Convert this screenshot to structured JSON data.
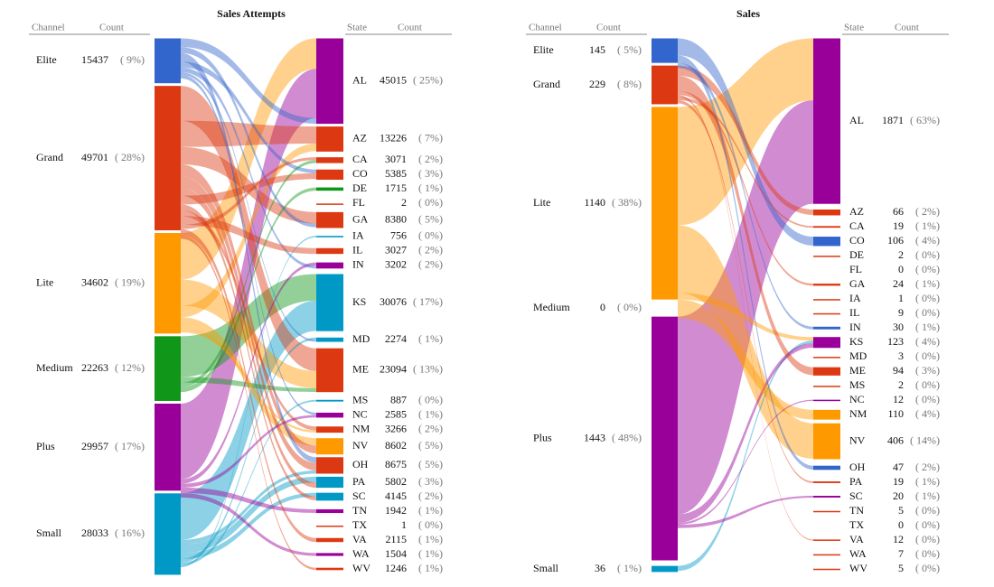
{
  "panels": [
    {
      "title": "Sales Attempts",
      "headers": {
        "channel": "Channel",
        "channel_count": "Count",
        "state": "State",
        "state_count": "Count"
      },
      "channels": [
        {
          "name": "Elite",
          "count": 15437,
          "share": "( 9%)",
          "color": "#3366cc"
        },
        {
          "name": "Grand",
          "count": 49701,
          "share": "( 28%)",
          "color": "#dc3912"
        },
        {
          "name": "Lite",
          "count": 34602,
          "share": "( 19%)",
          "color": "#ff9900"
        },
        {
          "name": "Medium",
          "count": 22263,
          "share": "( 12%)",
          "color": "#109618"
        },
        {
          "name": "Plus",
          "count": 29957,
          "share": "( 17%)",
          "color": "#990099"
        },
        {
          "name": "Small",
          "count": 28033,
          "share": "( 16%)",
          "color": "#0099c6"
        }
      ],
      "states": [
        {
          "name": "AL",
          "count": 45015,
          "share": "( 25%)"
        },
        {
          "name": "AZ",
          "count": 13226,
          "share": "( 7%)"
        },
        {
          "name": "CA",
          "count": 3071,
          "share": "( 2%)"
        },
        {
          "name": "CO",
          "count": 5385,
          "share": "( 3%)"
        },
        {
          "name": "DE",
          "count": 1715,
          "share": "( 1%)"
        },
        {
          "name": "FL",
          "count": 2,
          "share": "( 0%)"
        },
        {
          "name": "GA",
          "count": 8380,
          "share": "( 5%)"
        },
        {
          "name": "IA",
          "count": 756,
          "share": "( 0%)"
        },
        {
          "name": "IL",
          "count": 3027,
          "share": "( 2%)"
        },
        {
          "name": "IN",
          "count": 3202,
          "share": "( 2%)"
        },
        {
          "name": "KS",
          "count": 30076,
          "share": "( 17%)"
        },
        {
          "name": "MD",
          "count": 2274,
          "share": "( 1%)"
        },
        {
          "name": "ME",
          "count": 23094,
          "share": "( 13%)"
        },
        {
          "name": "MS",
          "count": 887,
          "share": "( 0%)"
        },
        {
          "name": "NC",
          "count": 2585,
          "share": "( 1%)"
        },
        {
          "name": "NM",
          "count": 3266,
          "share": "( 2%)"
        },
        {
          "name": "NV",
          "count": 8602,
          "share": "( 5%)"
        },
        {
          "name": "OH",
          "count": 8675,
          "share": "( 5%)"
        },
        {
          "name": "PA",
          "count": 5802,
          "share": "( 3%)"
        },
        {
          "name": "SC",
          "count": 4145,
          "share": "( 2%)"
        },
        {
          "name": "TN",
          "count": 1942,
          "share": "( 1%)"
        },
        {
          "name": "TX",
          "count": 1,
          "share": "( 0%)"
        },
        {
          "name": "VA",
          "count": 2115,
          "share": "( 1%)"
        },
        {
          "name": "WA",
          "count": 1504,
          "share": "( 1%)"
        },
        {
          "name": "WV",
          "count": 1246,
          "share": "( 1%)"
        }
      ],
      "flows": [
        {
          "from": "Lite",
          "to": "AL",
          "value": 16000
        },
        {
          "from": "Plus",
          "to": "AL",
          "value": 26000
        },
        {
          "from": "Elite",
          "to": "AL",
          "value": 3000
        },
        {
          "from": "Medium",
          "to": "KS",
          "value": 14000
        },
        {
          "from": "Small",
          "to": "KS",
          "value": 16000
        },
        {
          "from": "Grand",
          "to": "ME",
          "value": 12000
        },
        {
          "from": "Lite",
          "to": "ME",
          "value": 9000
        },
        {
          "from": "Medium",
          "to": "ME",
          "value": 2000
        },
        {
          "from": "Grand",
          "to": "AZ",
          "value": 9000
        },
        {
          "from": "Lite",
          "to": "AZ",
          "value": 4000
        },
        {
          "from": "Grand",
          "to": "GA",
          "value": 6000
        },
        {
          "from": "Elite",
          "to": "GA",
          "value": 2000
        },
        {
          "from": "Lite",
          "to": "NV",
          "value": 4000
        },
        {
          "from": "Grand",
          "to": "NV",
          "value": 4000
        },
        {
          "from": "Elite",
          "to": "OH",
          "value": 3000
        },
        {
          "from": "Grand",
          "to": "OH",
          "value": 4000
        },
        {
          "from": "Small",
          "to": "OH",
          "value": 1600
        },
        {
          "from": "Small",
          "to": "PA",
          "value": 3000
        },
        {
          "from": "Grand",
          "to": "PA",
          "value": 2800
        },
        {
          "from": "Elite",
          "to": "CO",
          "value": 2000
        },
        {
          "from": "Grand",
          "to": "CO",
          "value": 3000
        },
        {
          "from": "Small",
          "to": "SC",
          "value": 2000
        },
        {
          "from": "Grand",
          "to": "SC",
          "value": 2000
        },
        {
          "from": "Grand",
          "to": "NM",
          "value": 2000
        },
        {
          "from": "Lite",
          "to": "NM",
          "value": 1200
        },
        {
          "from": "Plus",
          "to": "IN",
          "value": 1600
        },
        {
          "from": "Elite",
          "to": "IN",
          "value": 1600
        },
        {
          "from": "Grand",
          "to": "IL",
          "value": 3000
        },
        {
          "from": "Grand",
          "to": "CA",
          "value": 1500
        },
        {
          "from": "Medium",
          "to": "CA",
          "value": 1500
        },
        {
          "from": "Small",
          "to": "MD",
          "value": 1200
        },
        {
          "from": "Elite",
          "to": "MD",
          "value": 1000
        },
        {
          "from": "Elite",
          "to": "NC",
          "value": 1200
        },
        {
          "from": "Plus",
          "to": "NC",
          "value": 1300
        },
        {
          "from": "Plus",
          "to": "TN",
          "value": 1900
        },
        {
          "from": "Grand",
          "to": "VA",
          "value": 2100
        },
        {
          "from": "Plus",
          "to": "WA",
          "value": 1500
        },
        {
          "from": "Grand",
          "to": "WV",
          "value": 1200
        },
        {
          "from": "Medium",
          "to": "DE",
          "value": 1700
        },
        {
          "from": "Small",
          "to": "MS",
          "value": 880
        },
        {
          "from": "Small",
          "to": "IA",
          "value": 750
        }
      ]
    },
    {
      "title": "Sales",
      "headers": {
        "channel": "Channel",
        "channel_count": "Count",
        "state": "State",
        "state_count": "Count"
      },
      "channels": [
        {
          "name": "Elite",
          "count": 145,
          "share": "( 5%)",
          "color": "#3366cc"
        },
        {
          "name": "Grand",
          "count": 229,
          "share": "( 8%)",
          "color": "#dc3912"
        },
        {
          "name": "Lite",
          "count": 1140,
          "share": "( 38%)",
          "color": "#ff9900"
        },
        {
          "name": "Medium",
          "count": 0,
          "share": "( 0%)",
          "color": "#109618"
        },
        {
          "name": "Plus",
          "count": 1443,
          "share": "( 48%)",
          "color": "#990099"
        },
        {
          "name": "Small",
          "count": 36,
          "share": "( 1%)",
          "color": "#0099c6"
        }
      ],
      "states": [
        {
          "name": "AL",
          "count": 1871,
          "share": "( 63%)"
        },
        {
          "name": "AZ",
          "count": 66,
          "share": "( 2%)"
        },
        {
          "name": "CA",
          "count": 19,
          "share": "( 1%)"
        },
        {
          "name": "CO",
          "count": 106,
          "share": "( 4%)"
        },
        {
          "name": "DE",
          "count": 2,
          "share": "( 0%)"
        },
        {
          "name": "FL",
          "count": 0,
          "share": "( 0%)"
        },
        {
          "name": "GA",
          "count": 24,
          "share": "( 1%)"
        },
        {
          "name": "IA",
          "count": 1,
          "share": "( 0%)"
        },
        {
          "name": "IL",
          "count": 9,
          "share": "( 0%)"
        },
        {
          "name": "IN",
          "count": 30,
          "share": "( 1%)"
        },
        {
          "name": "KS",
          "count": 123,
          "share": "( 4%)"
        },
        {
          "name": "MD",
          "count": 3,
          "share": "( 0%)"
        },
        {
          "name": "ME",
          "count": 94,
          "share": "( 3%)"
        },
        {
          "name": "MS",
          "count": 2,
          "share": "( 0%)"
        },
        {
          "name": "NC",
          "count": 12,
          "share": "( 0%)"
        },
        {
          "name": "NM",
          "count": 110,
          "share": "( 4%)"
        },
        {
          "name": "NV",
          "count": 406,
          "share": "( 14%)"
        },
        {
          "name": "OH",
          "count": 47,
          "share": "( 2%)"
        },
        {
          "name": "PA",
          "count": 19,
          "share": "( 1%)"
        },
        {
          "name": "SC",
          "count": 20,
          "share": "( 1%)"
        },
        {
          "name": "TN",
          "count": 5,
          "share": "( 0%)"
        },
        {
          "name": "TX",
          "count": 0,
          "share": "( 0%)"
        },
        {
          "name": "VA",
          "count": 12,
          "share": "( 0%)"
        },
        {
          "name": "WA",
          "count": 7,
          "share": "( 0%)"
        },
        {
          "name": "WV",
          "count": 5,
          "share": "( 0%)"
        }
      ],
      "flows": [
        {
          "from": "Lite",
          "to": "AL",
          "value": 700
        },
        {
          "from": "Plus",
          "to": "AL",
          "value": 1170
        },
        {
          "from": "Lite",
          "to": "NV",
          "value": 400
        },
        {
          "from": "Lite",
          "to": "KS",
          "value": 40
        },
        {
          "from": "Small",
          "to": "KS",
          "value": 30
        },
        {
          "from": "Plus",
          "to": "KS",
          "value": 50
        },
        {
          "from": "Lite",
          "to": "NM",
          "value": 110
        },
        {
          "from": "Elite",
          "to": "CO",
          "value": 100
        },
        {
          "from": "Grand",
          "to": "AZ",
          "value": 60
        },
        {
          "from": "Grand",
          "to": "ME",
          "value": 90
        },
        {
          "from": "Elite",
          "to": "OH",
          "value": 45
        },
        {
          "from": "Grand",
          "to": "GA",
          "value": 24
        },
        {
          "from": "Elite",
          "to": "IN",
          "value": 30
        },
        {
          "from": "Plus",
          "to": "NC",
          "value": 12
        },
        {
          "from": "Plus",
          "to": "SC",
          "value": 20
        },
        {
          "from": "Grand",
          "to": "VA",
          "value": 12
        },
        {
          "from": "Grand",
          "to": "CA",
          "value": 19
        },
        {
          "from": "Grand",
          "to": "PA",
          "value": 19
        }
      ]
    }
  ]
}
